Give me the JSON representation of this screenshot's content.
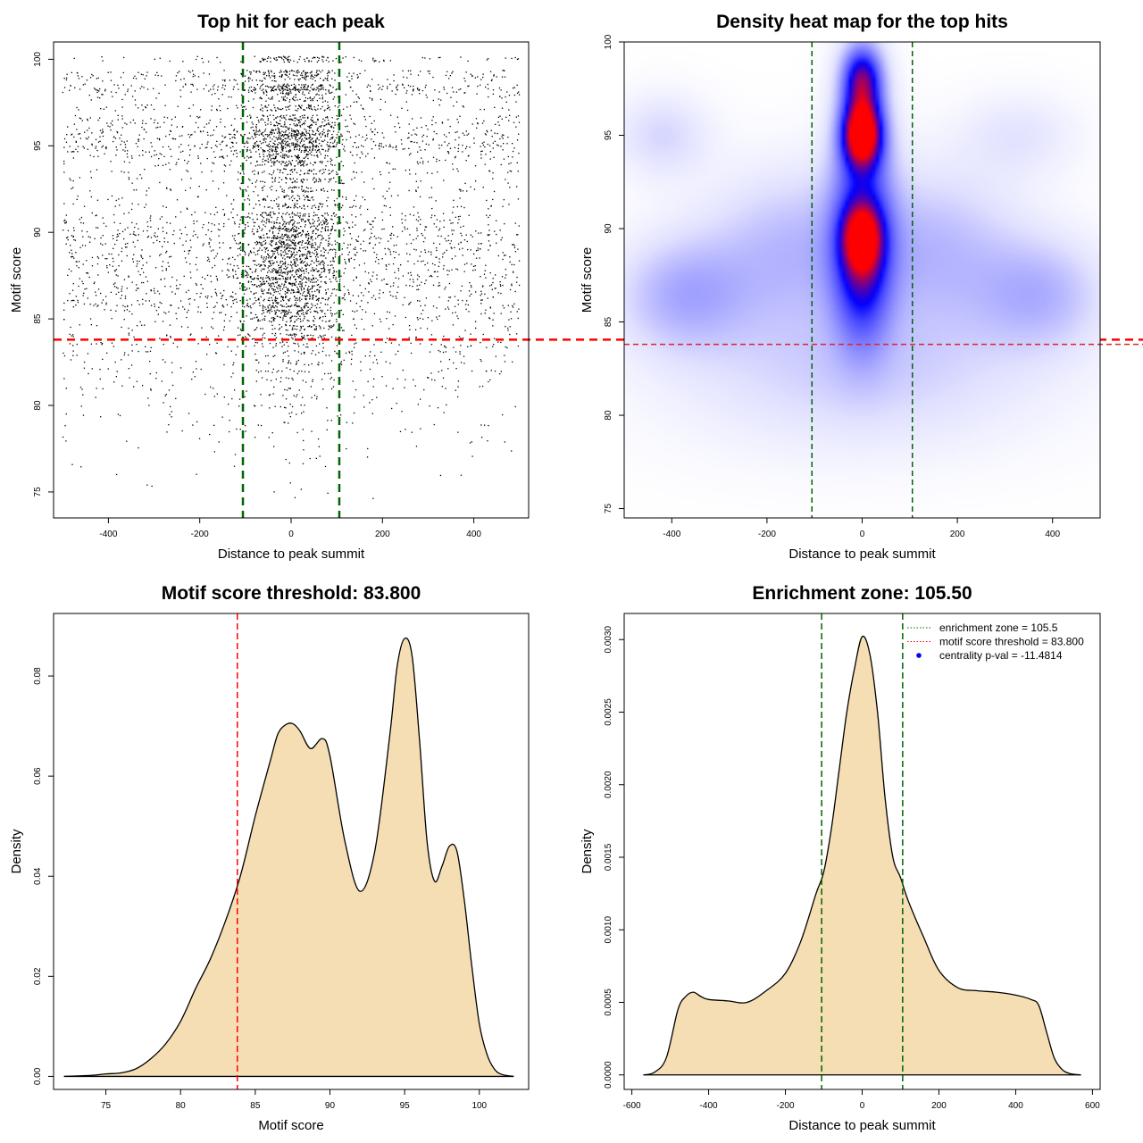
{
  "chart_data": [
    {
      "id": "scatter",
      "type": "scatter",
      "title": "Top hit for each peak",
      "xlabel": "Distance to peak summit",
      "ylabel": "Motif score",
      "xlim": [
        -520,
        520
      ],
      "ylim": [
        73.5,
        101
      ],
      "xticks": [
        -400,
        -200,
        0,
        200,
        400
      ],
      "yticks": [
        75,
        80,
        85,
        90,
        95,
        100
      ],
      "vlines": [
        -105.5,
        105.5
      ],
      "hline": 83.8,
      "point_count": 6000,
      "score_levels": [
        {
          "score": 100.0,
          "weight": 2.0
        },
        {
          "score": 99.2,
          "weight": 2.6
        },
        {
          "score": 98.9,
          "weight": 2.0
        },
        {
          "score": 98.4,
          "weight": 3.4
        },
        {
          "score": 98.1,
          "weight": 2.6
        },
        {
          "score": 97.7,
          "weight": 1.6
        },
        {
          "score": 97.2,
          "weight": 2.2
        },
        {
          "score": 96.6,
          "weight": 2.4
        },
        {
          "score": 96.2,
          "weight": 2.6
        },
        {
          "score": 95.8,
          "weight": 3.0
        },
        {
          "score": 95.5,
          "weight": 3.4
        },
        {
          "score": 95.1,
          "weight": 3.8
        },
        {
          "score": 94.8,
          "weight": 3.2
        },
        {
          "score": 94.4,
          "weight": 2.4
        },
        {
          "score": 94.0,
          "weight": 2.2
        },
        {
          "score": 93.5,
          "weight": 1.8
        },
        {
          "score": 93.0,
          "weight": 1.6
        },
        {
          "score": 92.5,
          "weight": 1.6
        },
        {
          "score": 92.0,
          "weight": 1.5
        },
        {
          "score": 91.5,
          "weight": 1.7
        },
        {
          "score": 91.0,
          "weight": 2.2
        },
        {
          "score": 90.6,
          "weight": 2.7
        },
        {
          "score": 90.2,
          "weight": 3.0
        },
        {
          "score": 89.8,
          "weight": 3.2
        },
        {
          "score": 89.4,
          "weight": 3.2
        },
        {
          "score": 89.0,
          "weight": 3.1
        },
        {
          "score": 88.6,
          "weight": 3.0
        },
        {
          "score": 88.2,
          "weight": 3.0
        },
        {
          "score": 87.8,
          "weight": 3.0
        },
        {
          "score": 87.4,
          "weight": 3.0
        },
        {
          "score": 87.0,
          "weight": 3.0
        },
        {
          "score": 86.6,
          "weight": 2.9
        },
        {
          "score": 86.2,
          "weight": 2.8
        },
        {
          "score": 85.8,
          "weight": 2.6
        },
        {
          "score": 85.4,
          "weight": 2.3
        },
        {
          "score": 85.0,
          "weight": 2.0
        },
        {
          "score": 84.5,
          "weight": 1.8
        },
        {
          "score": 84.0,
          "weight": 1.6
        },
        {
          "score": 83.5,
          "weight": 1.4
        },
        {
          "score": 83.0,
          "weight": 1.2
        },
        {
          "score": 82.5,
          "weight": 1.0
        },
        {
          "score": 82.0,
          "weight": 0.9
        },
        {
          "score": 81.5,
          "weight": 0.8
        },
        {
          "score": 81.0,
          "weight": 0.7
        },
        {
          "score": 80.5,
          "weight": 0.6
        },
        {
          "score": 80.0,
          "weight": 0.5
        },
        {
          "score": 79.5,
          "weight": 0.4
        },
        {
          "score": 79.0,
          "weight": 0.35
        },
        {
          "score": 78.5,
          "weight": 0.3
        },
        {
          "score": 78.0,
          "weight": 0.25
        },
        {
          "score": 77.5,
          "weight": 0.15
        },
        {
          "score": 77.0,
          "weight": 0.12
        },
        {
          "score": 76.5,
          "weight": 0.1
        },
        {
          "score": 76.0,
          "weight": 0.08
        },
        {
          "score": 75.5,
          "weight": 0.06
        },
        {
          "score": 75.0,
          "weight": 0.05
        },
        {
          "score": 74.5,
          "weight": 0.03
        }
      ]
    },
    {
      "id": "heatmap",
      "type": "heatmap",
      "title": "Density heat map for the top hits",
      "xlabel": "Distance to peak summit",
      "ylabel": "Motif score",
      "xlim": [
        -500,
        500
      ],
      "ylim": [
        74.5,
        100
      ],
      "xticks": [
        -400,
        -200,
        0,
        200,
        400
      ],
      "yticks": [
        75,
        80,
        85,
        90,
        95,
        100
      ],
      "vlines": [
        -105.5,
        105.5
      ],
      "hline": 83.8,
      "blobs": [
        {
          "x": 0,
          "y": 95.1,
          "sx": 28,
          "sy": 1.2,
          "w": 1.0
        },
        {
          "x": 0,
          "y": 98.0,
          "sx": 28,
          "sy": 1.2,
          "w": 0.62
        },
        {
          "x": 0,
          "y": 89.5,
          "sx": 28,
          "sy": 1.2,
          "w": 0.62
        },
        {
          "x": 0,
          "y": 92.5,
          "sx": 45,
          "sy": 4.5,
          "w": 0.38
        },
        {
          "x": 0,
          "y": 87.5,
          "sx": 40,
          "sy": 2.5,
          "w": 0.35
        },
        {
          "x": -150,
          "y": 89.0,
          "sx": 130,
          "sy": 3.0,
          "w": 0.2
        },
        {
          "x": 150,
          "y": 89.0,
          "sx": 130,
          "sy": 3.0,
          "w": 0.2
        },
        {
          "x": -380,
          "y": 86.5,
          "sx": 100,
          "sy": 2.2,
          "w": 0.22
        },
        {
          "x": 380,
          "y": 86.5,
          "sx": 100,
          "sy": 2.2,
          "w": 0.2
        },
        {
          "x": -420,
          "y": 95.0,
          "sx": 70,
          "sy": 1.6,
          "w": 0.14
        },
        {
          "x": 330,
          "y": 95.0,
          "sx": 90,
          "sy": 1.6,
          "w": 0.1
        },
        {
          "x": 0,
          "y": 83.0,
          "sx": 260,
          "sy": 2.6,
          "w": 0.13
        },
        {
          "x": 0,
          "y": 80.0,
          "sx": 300,
          "sy": 2.5,
          "w": 0.05
        }
      ]
    },
    {
      "id": "score-density",
      "type": "area",
      "title": "Motif score threshold: 83.800",
      "xlabel": "Motif score",
      "ylabel": "Density",
      "xlim": [
        71.5,
        103.3
      ],
      "ylim": [
        -0.0026,
        0.0925
      ],
      "xticks": [
        75,
        80,
        85,
        90,
        95,
        100
      ],
      "yticks": [
        0.0,
        0.02,
        0.04,
        0.06,
        0.08
      ],
      "ytick_labels": [
        "0.00",
        "0.02",
        "0.04",
        "0.06",
        "0.08"
      ],
      "threshold": 83.8,
      "x": [
        72.2,
        74,
        75,
        76,
        77,
        78,
        79,
        80,
        81,
        82,
        83,
        84,
        85,
        86,
        86.5,
        87,
        87.5,
        88,
        88.7,
        89.5,
        90,
        91,
        92,
        93,
        94,
        94.5,
        95,
        95.5,
        96,
        96.5,
        97,
        97.5,
        98,
        98.5,
        99,
        99.5,
        100,
        100.5,
        101,
        101.5,
        102.3
      ],
      "y": [
        0.0,
        0.0002,
        0.0005,
        0.0007,
        0.0015,
        0.0035,
        0.0065,
        0.011,
        0.0175,
        0.0235,
        0.031,
        0.04,
        0.052,
        0.063,
        0.0683,
        0.0702,
        0.0705,
        0.069,
        0.0655,
        0.0675,
        0.064,
        0.047,
        0.037,
        0.045,
        0.068,
        0.082,
        0.0875,
        0.084,
        0.067,
        0.047,
        0.039,
        0.042,
        0.046,
        0.045,
        0.035,
        0.022,
        0.0105,
        0.0045,
        0.0015,
        0.0004,
        0.0
      ]
    },
    {
      "id": "distance-density",
      "type": "area",
      "title": "Enrichment zone: 105.50",
      "xlabel": "Distance to peak summit",
      "ylabel": "Density",
      "xlim": [
        -620,
        620
      ],
      "ylim": [
        -0.0001,
        0.00318
      ],
      "xticks": [
        -600,
        -400,
        -200,
        0,
        200,
        400,
        600
      ],
      "yticks": [
        0.0,
        0.0005,
        0.001,
        0.0015,
        0.002,
        0.0025,
        0.003
      ],
      "ytick_labels": [
        "0.0000",
        "0.0005",
        "0.0010",
        "0.0015",
        "0.0020",
        "0.0025",
        "0.0030"
      ],
      "vlines": [
        -105.5,
        105.5
      ],
      "x": [
        -570,
        -540,
        -510,
        -480,
        -460,
        -440,
        -420,
        -400,
        -350,
        -300,
        -250,
        -200,
        -160,
        -120,
        -100,
        -80,
        -60,
        -40,
        -20,
        0,
        20,
        40,
        60,
        80,
        100,
        120,
        160,
        200,
        250,
        300,
        350,
        400,
        440,
        460,
        480,
        500,
        520,
        540,
        570
      ],
      "y": [
        0.0,
        2e-05,
        0.00012,
        0.00045,
        0.00054,
        0.00057,
        0.00054,
        0.00052,
        0.00051,
        0.0005,
        0.00058,
        0.0007,
        0.00092,
        0.00125,
        0.0014,
        0.0017,
        0.0021,
        0.0025,
        0.0028,
        0.00302,
        0.0029,
        0.0025,
        0.0019,
        0.0015,
        0.00136,
        0.0012,
        0.00095,
        0.00072,
        0.0006,
        0.00058,
        0.00057,
        0.00055,
        0.00052,
        0.00048,
        0.0003,
        0.00012,
        4e-05,
        1e-05,
        0.0
      ],
      "legend": [
        {
          "label": "enrichment zone = 105.5",
          "color": "#006400",
          "style": "dotted"
        },
        {
          "label": "motif score threshold = 83.800",
          "color": "#ff0000",
          "style": "dotted"
        },
        {
          "label": "centrality p-val = -11.4814",
          "color": "#0000ff",
          "style": "point"
        }
      ],
      "legend_position": "top-right"
    }
  ],
  "colors": {
    "fill": "#f5deb3",
    "threshold_line": "#ff0000",
    "zone_line": "#006400",
    "points": "#000000",
    "heat_low": "#ffffff",
    "heat_mid": "#0000ff",
    "heat_high": "#ff0000"
  }
}
